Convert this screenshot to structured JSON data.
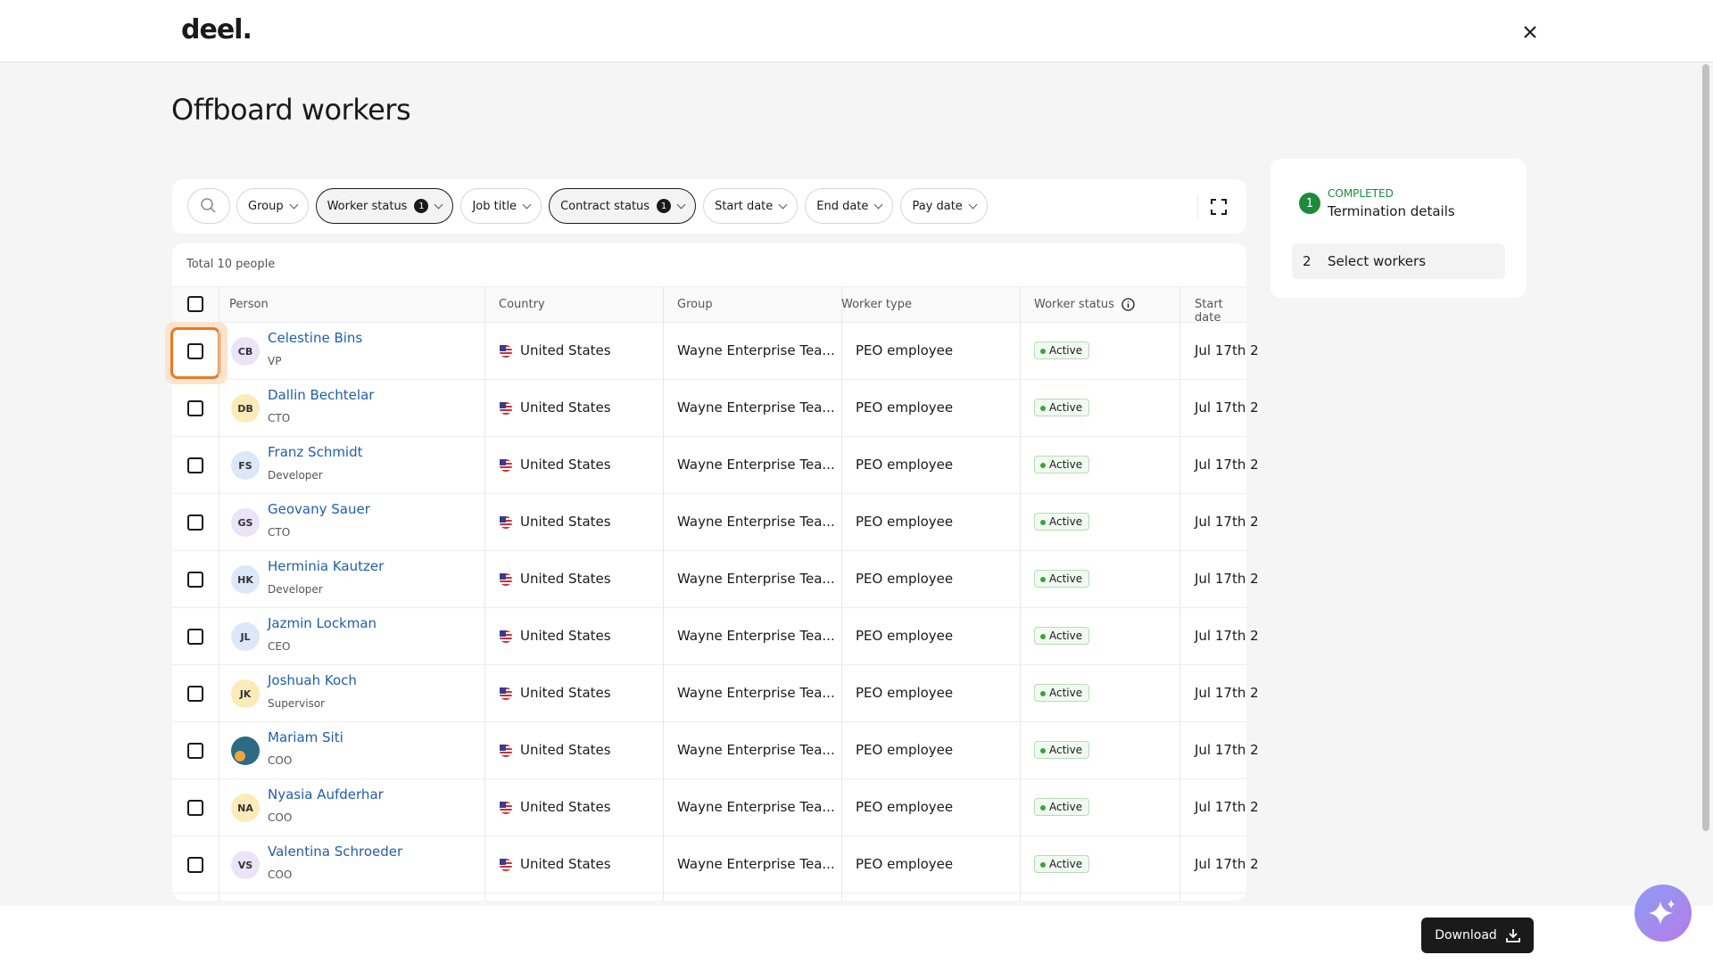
{
  "header": {
    "logo": "deel."
  },
  "title": "Offboard workers",
  "filters": [
    {
      "label": "Group"
    },
    {
      "label": "Worker status",
      "badge": 1
    },
    {
      "label": "Job title"
    },
    {
      "label": "Contract status",
      "badge": 1
    },
    {
      "label": "Start date"
    },
    {
      "label": "End date"
    },
    {
      "label": "Pay date"
    }
  ],
  "table": {
    "total": "Total 10 people",
    "columns": [
      "Person",
      "Country",
      "Group",
      "Worker type",
      "Worker status",
      "Start date"
    ],
    "rows": [
      {
        "initials": "CB",
        "avatar_color": "#ebe3f8",
        "name": "Celestine Bins",
        "role": "VP",
        "country": "United States",
        "group": "Wayne Enterprise Tea...",
        "worker_type": "PEO employee",
        "status": "Active",
        "start_date": "Jul 17th 2"
      },
      {
        "initials": "DB",
        "avatar_color": "#fcebb8",
        "name": "Dallin Bechtelar",
        "role": "CTO",
        "country": "United States",
        "group": "Wayne Enterprise Tea...",
        "worker_type": "PEO employee",
        "status": "Active",
        "start_date": "Jul 17th 2"
      },
      {
        "initials": "FS",
        "avatar_color": "#dce8fa",
        "name": "Franz Schmidt",
        "role": "Developer",
        "country": "United States",
        "group": "Wayne Enterprise Tea...",
        "worker_type": "PEO employee",
        "status": "Active",
        "start_date": "Jul 17th 2"
      },
      {
        "initials": "GS",
        "avatar_color": "#ebe3f8",
        "name": "Geovany Sauer",
        "role": "CTO",
        "country": "United States",
        "group": "Wayne Enterprise Tea...",
        "worker_type": "PEO employee",
        "status": "Active",
        "start_date": "Jul 17th 2"
      },
      {
        "initials": "HK",
        "avatar_color": "#dce8fa",
        "name": "Herminia Kautzer",
        "role": "Developer",
        "country": "United States",
        "group": "Wayne Enterprise Tea...",
        "worker_type": "PEO employee",
        "status": "Active",
        "start_date": "Jul 17th 2"
      },
      {
        "initials": "JL",
        "avatar_color": "#dce8fa",
        "name": "Jazmin Lockman",
        "role": "CEO",
        "country": "United States",
        "group": "Wayne Enterprise Tea...",
        "worker_type": "PEO employee",
        "status": "Active",
        "start_date": "Jul 17th 2"
      },
      {
        "initials": "JK",
        "avatar_color": "#fcebb8",
        "name": "Joshuah Koch",
        "role": "Supervisor",
        "country": "United States",
        "group": "Wayne Enterprise Tea...",
        "worker_type": "PEO employee",
        "status": "Active",
        "start_date": "Jul 17th 2"
      },
      {
        "avatar_color": "#2c6a86",
        "name": "Mariam Siti",
        "role": "COO",
        "country": "United States",
        "group": "Wayne Enterprise Tea...",
        "worker_type": "PEO employee",
        "status": "Active",
        "start_date": "Jul 17th 2"
      },
      {
        "initials": "NA",
        "avatar_color": "#fcebb8",
        "name": "Nyasia Aufderhar",
        "role": "COO",
        "country": "United States",
        "group": "Wayne Enterprise Tea...",
        "worker_type": "PEO employee",
        "status": "Active",
        "start_date": "Jul 17th 2"
      },
      {
        "initials": "VS",
        "avatar_color": "#ebe3f8",
        "name": "Valentina Schroeder",
        "role": "COO",
        "country": "United States",
        "group": "Wayne Enterprise Tea...",
        "worker_type": "PEO employee",
        "status": "Active",
        "start_date": "Jul 17th 2"
      }
    ]
  },
  "steps": [
    {
      "number": 1,
      "status": "COMPLETED",
      "label": "Termination details"
    },
    {
      "number": 2,
      "label": "Select workers"
    }
  ],
  "download": "Download"
}
